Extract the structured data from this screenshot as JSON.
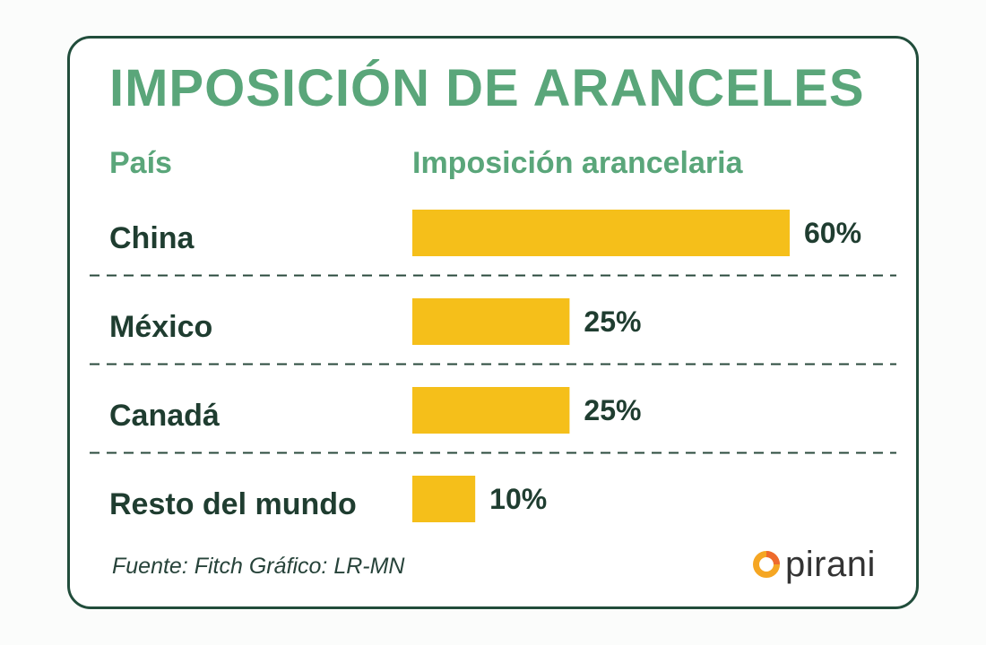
{
  "title": "IMPOSICIÓN DE ARANCELES",
  "headers": {
    "country": "País",
    "value": "Imposición arancelaria"
  },
  "source": "Fuente: Fitch Gráfico: LR-MN",
  "brand": {
    "name": "pirani",
    "icon": "pirani-logo-icon",
    "colors": [
      "#f5a623",
      "#ee6a2c"
    ]
  },
  "colors": {
    "bar": "#f5bf1a",
    "title": "#5aa67a",
    "text": "#1f3d30",
    "border": "#214d3b"
  },
  "chart_data": {
    "type": "bar",
    "orientation": "horizontal",
    "title": "IMPOSICIÓN DE ARANCELES",
    "xlabel": "Imposición arancelaria",
    "ylabel": "País",
    "categories": [
      "China",
      "México",
      "Canadá",
      "Resto del mundo"
    ],
    "values": [
      60,
      25,
      25,
      10
    ],
    "value_labels": [
      "60%",
      "25%",
      "25%",
      "10%"
    ],
    "unit": "%",
    "xlim": [
      0,
      60
    ],
    "grid": false,
    "legend": "none"
  }
}
